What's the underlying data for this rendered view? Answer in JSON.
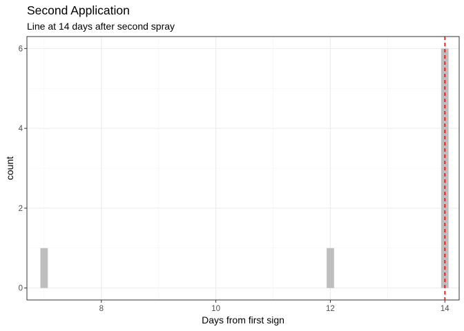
{
  "chart_data": {
    "type": "bar",
    "title": "Second Application",
    "subtitle": "Line at 14 days after second spray",
    "xlabel": "Days from first sign",
    "ylabel": "count",
    "xlim": [
      6.7,
      14.25
    ],
    "ylim": [
      -0.3,
      6.3
    ],
    "x_ticks": [
      8,
      10,
      12,
      14
    ],
    "y_ticks": [
      0,
      2,
      4,
      6
    ],
    "bin_width": 0.13,
    "bars": [
      {
        "x": 7,
        "count": 1
      },
      {
        "x": 12,
        "count": 1
      },
      {
        "x": 14,
        "count": 6
      }
    ],
    "reference_line": {
      "x": 14,
      "style": "dashed"
    },
    "bar_color": "#bebebe",
    "line_color": "#ff0000",
    "grid": true,
    "theme": "bw"
  }
}
